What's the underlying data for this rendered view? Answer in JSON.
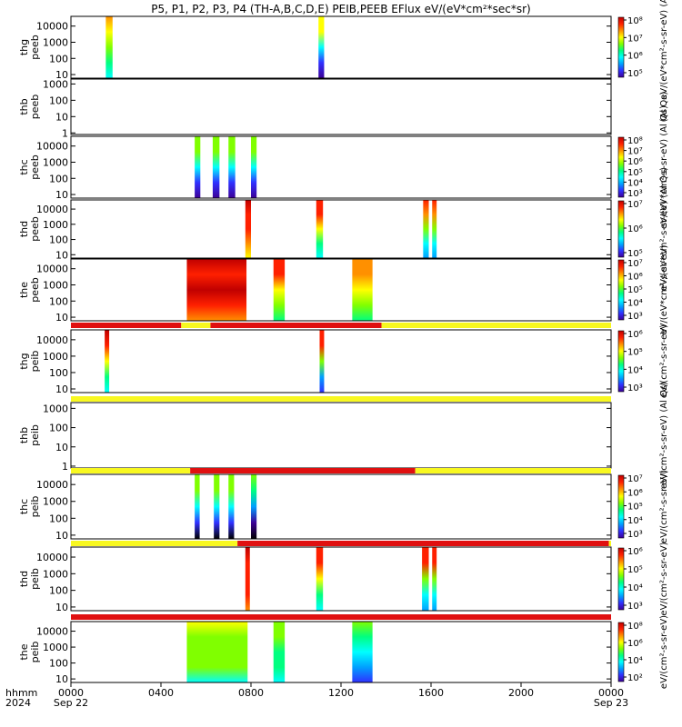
{
  "title": "P5, P1, P2, P3, P4 (TH-A,B,C,D,E) PEIB,PEEB EFlux eV/(eV*cm²*sec*sr)",
  "x_axis": {
    "row_labels": [
      "hhmm",
      "2024"
    ],
    "tick_labels": [
      "0000",
      "0400",
      "0800",
      "1200",
      "1600",
      "2000",
      "0000"
    ],
    "date_labels": [
      "Sep 22",
      "",
      "",
      "",
      "",
      "",
      "Sep 23"
    ]
  },
  "colors": {
    "flag_red": "#e01010",
    "flag_yellow": "#f8f820",
    "colormap": [
      "#000000",
      "#3c0096",
      "#3030ff",
      "#00a0ff",
      "#00ffff",
      "#00ff80",
      "#80ff00",
      "#ffff00",
      "#ff9000",
      "#ff2000",
      "#c00000"
    ]
  },
  "chart_data": [
    {
      "type": "heatmap",
      "ylabel": "thg peeb",
      "yscale": "log",
      "ylim": [
        6,
        40000
      ],
      "yticks": [
        "10000",
        "1000",
        "100",
        "10"
      ],
      "colorbar": {
        "label": "eV/(eV*cm²-s-sr-eV) (Al",
        "ticks": [
          "10⁸",
          "10⁷",
          "10⁶",
          "10⁵"
        ],
        "zlim": [
          100000.0,
          100000000.0
        ]
      },
      "blocks": [
        {
          "x": [
            1.55,
            1.85
          ],
          "ylim": [
            6,
            40000
          ],
          "pattern": "vert",
          "levels": [
            0.72,
            0.45
          ]
        },
        {
          "x": [
            11.0,
            11.25
          ],
          "ylim": [
            6,
            40000
          ],
          "pattern": "vert",
          "levels": [
            0.68,
            0.2
          ]
        }
      ]
    },
    {
      "type": "heatmap",
      "ylabel": "thb peeb",
      "yscale": "log",
      "ylim": [
        0.8,
        2000
      ],
      "yticks": [
        "1000",
        "100",
        "10",
        "1"
      ],
      "colorbar": {
        "label": "(Al Qs)",
        "ticks": []
      },
      "blocks": []
    },
    {
      "type": "heatmap",
      "ylabel": "thc peeb",
      "yscale": "log",
      "ylim": [
        6,
        40000
      ],
      "yticks": [
        "10000",
        "1000",
        "100",
        "10"
      ],
      "colorbar": {
        "label": "eV/(eV*cm²-s-sr-eV) (Al Qs)",
        "ticks": [
          "10⁸",
          "10⁷",
          "10⁶",
          "10⁵",
          "10⁴",
          "10³"
        ],
        "zlim": [
          1000.0,
          100000000.0
        ]
      },
      "blocks": [
        {
          "x": [
            5.5,
            5.75
          ],
          "ylim": [
            6,
            40000
          ],
          "pattern": "vert",
          "levels": [
            0.55,
            0.2
          ]
        },
        {
          "x": [
            6.3,
            6.6
          ],
          "ylim": [
            6,
            40000
          ],
          "pattern": "vert",
          "levels": [
            0.55,
            0.2
          ]
        },
        {
          "x": [
            7.0,
            7.3
          ],
          "ylim": [
            6,
            40000
          ],
          "pattern": "vert",
          "levels": [
            0.55,
            0.2
          ]
        },
        {
          "x": [
            8.0,
            8.25
          ],
          "ylim": [
            6,
            40000
          ],
          "pattern": "vert",
          "levels": [
            0.55,
            0.2
          ]
        }
      ]
    },
    {
      "type": "heatmap",
      "ylabel": "thd peeb",
      "yscale": "log",
      "ylim": [
        6,
        40000
      ],
      "yticks": [
        "10000",
        "1000",
        "100",
        "10"
      ],
      "colorbar": {
        "label": "eV/(eV*cm²-s-sr-eV) (Al Qs)",
        "ticks": [
          "10⁷",
          "10⁶",
          "10⁵"
        ],
        "zlim": [
          10000.0,
          100000000.0
        ]
      },
      "blocks": [
        {
          "x": [
            7.75,
            8.0
          ],
          "ylim": [
            6,
            40000
          ],
          "pattern": "vert",
          "levels": [
            0.9,
            0.8
          ]
        },
        {
          "x": [
            10.9,
            11.2
          ],
          "ylim": [
            6,
            40000
          ],
          "pattern": "vert",
          "levels": [
            0.85,
            0.5
          ]
        },
        {
          "x": [
            15.65,
            15.9
          ],
          "ylim": [
            6,
            40000
          ],
          "pattern": "vert",
          "levels": [
            0.82,
            0.4
          ]
        },
        {
          "x": [
            16.05,
            16.25
          ],
          "ylim": [
            6,
            40000
          ],
          "pattern": "vert",
          "levels": [
            0.82,
            0.4
          ]
        }
      ]
    },
    {
      "type": "heatmap",
      "ylabel": "the peeb",
      "yscale": "log",
      "ylim": [
        6,
        40000
      ],
      "yticks": [
        "10000",
        "1000",
        "100",
        "10"
      ],
      "colorbar": {
        "label": "eV/(eV*cm²-s-sr-eV)",
        "ticks": [
          "10⁷",
          "10⁶",
          "10⁵",
          "10⁴",
          "10³"
        ],
        "zlim": [
          1000.0,
          10000000.0
        ]
      },
      "blocks": [
        {
          "x": [
            5.15,
            7.8
          ],
          "ylim": [
            6,
            40000
          ],
          "pattern": "hot",
          "levels": [
            0.88,
            0.95
          ]
        },
        {
          "x": [
            9.0,
            9.5
          ],
          "ylim": [
            6,
            40000
          ],
          "pattern": "vert",
          "levels": [
            0.88,
            0.6
          ]
        },
        {
          "x": [
            12.5,
            13.4
          ],
          "ylim": [
            6,
            40000
          ],
          "pattern": "vert",
          "levels": [
            0.75,
            0.58
          ]
        }
      ],
      "flag_bar": [
        {
          "x": [
            0,
            4.9
          ],
          "color": "red"
        },
        {
          "x": [
            4.9,
            6.2
          ],
          "color": "yellow"
        },
        {
          "x": [
            6.2,
            13.8
          ],
          "color": "red"
        },
        {
          "x": [
            13.8,
            24
          ],
          "color": "yellow"
        }
      ]
    },
    {
      "type": "heatmap",
      "ylabel": "thg peib",
      "yscale": "log",
      "ylim": [
        6,
        40000
      ],
      "yticks": [
        "10000",
        "1000",
        "100",
        "10"
      ],
      "colorbar": {
        "label": "eV/(cm²-s-sr-eV)",
        "ticks": [
          "10⁶",
          "10⁵",
          "10⁴",
          "10³"
        ],
        "zlim": [
          1000.0,
          1000000.0
        ]
      },
      "blocks": [
        {
          "x": [
            1.5,
            1.7
          ],
          "ylim": [
            6,
            40000
          ],
          "pattern": "vert",
          "levels": [
            0.9,
            0.5
          ]
        },
        {
          "x": [
            11.05,
            11.25
          ],
          "ylim": [
            6,
            40000
          ],
          "pattern": "vert",
          "levels": [
            0.85,
            0.25
          ]
        }
      ],
      "flag_bar": [
        {
          "x": [
            0,
            24
          ],
          "color": "yellow"
        }
      ]
    },
    {
      "type": "heatmap",
      "ylabel": "thb peib",
      "yscale": "log",
      "ylim": [
        0.8,
        2000
      ],
      "yticks": [
        "1000",
        "100",
        "10",
        "1"
      ],
      "colorbar": {
        "label": "eV/(cm²-s-sr-eV) (Al Qs)",
        "ticks": []
      },
      "blocks": [],
      "flag_bar": [
        {
          "x": [
            0,
            5.3
          ],
          "color": "yellow"
        },
        {
          "x": [
            5.3,
            15.3
          ],
          "color": "red"
        },
        {
          "x": [
            15.3,
            24
          ],
          "color": "yellow"
        }
      ]
    },
    {
      "type": "heatmap",
      "ylabel": "thc peib",
      "yscale": "log",
      "ylim": [
        6,
        40000
      ],
      "yticks": [
        "10000",
        "1000",
        "100",
        "10"
      ],
      "colorbar": {
        "label": "eV/(cm²-s-sr-eV)",
        "ticks": [
          "10⁷",
          "10⁶",
          "10⁵",
          "10⁴",
          "10³"
        ],
        "zlim": [
          1000.0,
          10000000.0
        ]
      },
      "blocks": [
        {
          "x": [
            5.5,
            5.72
          ],
          "ylim": [
            6,
            40000
          ],
          "pattern": "vert",
          "levels": [
            0.55,
            0.15
          ]
        },
        {
          "x": [
            6.35,
            6.6
          ],
          "ylim": [
            6,
            40000
          ],
          "pattern": "vert",
          "levels": [
            0.55,
            0.15
          ]
        },
        {
          "x": [
            7.0,
            7.25
          ],
          "ylim": [
            6,
            40000
          ],
          "pattern": "vert",
          "levels": [
            0.55,
            0.15
          ]
        },
        {
          "x": [
            8.0,
            8.25
          ],
          "ylim": [
            6,
            40000
          ],
          "pattern": "vert",
          "levels": [
            0.5,
            0.12
          ]
        }
      ],
      "flag_bar": [
        {
          "x": [
            0,
            7.4
          ],
          "color": "yellow"
        },
        {
          "x": [
            7.4,
            23.9
          ],
          "color": "red"
        },
        {
          "x": [
            23.9,
            24
          ],
          "color": "yellow"
        }
      ]
    },
    {
      "type": "heatmap",
      "ylabel": "thd peib",
      "yscale": "log",
      "ylim": [
        6,
        40000
      ],
      "yticks": [
        "10000",
        "1000",
        "100",
        "10"
      ],
      "colorbar": {
        "label": "eV/(cm²-s-sr-eV)",
        "ticks": [
          "10⁶",
          "10⁵",
          "10⁴",
          "10³"
        ],
        "zlim": [
          1000.0,
          1000000.0
        ]
      },
      "blocks": [
        {
          "x": [
            7.75,
            7.95
          ],
          "ylim": [
            6,
            40000
          ],
          "pattern": "vert",
          "levels": [
            0.9,
            0.85
          ]
        },
        {
          "x": [
            10.9,
            11.2
          ],
          "ylim": [
            6,
            40000
          ],
          "pattern": "vert",
          "levels": [
            0.85,
            0.5
          ]
        },
        {
          "x": [
            15.6,
            15.9
          ],
          "ylim": [
            6,
            40000
          ],
          "pattern": "vert",
          "levels": [
            0.88,
            0.4
          ]
        },
        {
          "x": [
            16.05,
            16.25
          ],
          "ylim": [
            6,
            40000
          ],
          "pattern": "vert",
          "levels": [
            0.88,
            0.4
          ]
        }
      ],
      "flag_bar": [
        {
          "x": [
            0,
            24
          ],
          "color": "red"
        }
      ]
    },
    {
      "type": "heatmap",
      "ylabel": "the peib",
      "yscale": "log",
      "ylim": [
        6,
        40000
      ],
      "yticks": [
        "10000",
        "1000",
        "100",
        "10"
      ],
      "colorbar": {
        "label": "eV/(cm²-s-sr-eV)",
        "ticks": [
          "10⁸",
          "10⁶",
          "10⁴",
          "10²"
        ],
        "zlim": [
          100.0,
          100000000.0
        ]
      },
      "blocks": [
        {
          "x": [
            5.15,
            7.85
          ],
          "ylim": [
            6,
            40000
          ],
          "pattern": "cool",
          "levels": [
            0.55,
            0.62
          ]
        },
        {
          "x": [
            9.0,
            9.5
          ],
          "ylim": [
            6,
            40000
          ],
          "pattern": "vert",
          "levels": [
            0.55,
            0.45
          ]
        },
        {
          "x": [
            12.5,
            13.4
          ],
          "ylim": [
            6,
            40000
          ],
          "pattern": "vert",
          "levels": [
            0.5,
            0.3
          ]
        }
      ]
    }
  ]
}
